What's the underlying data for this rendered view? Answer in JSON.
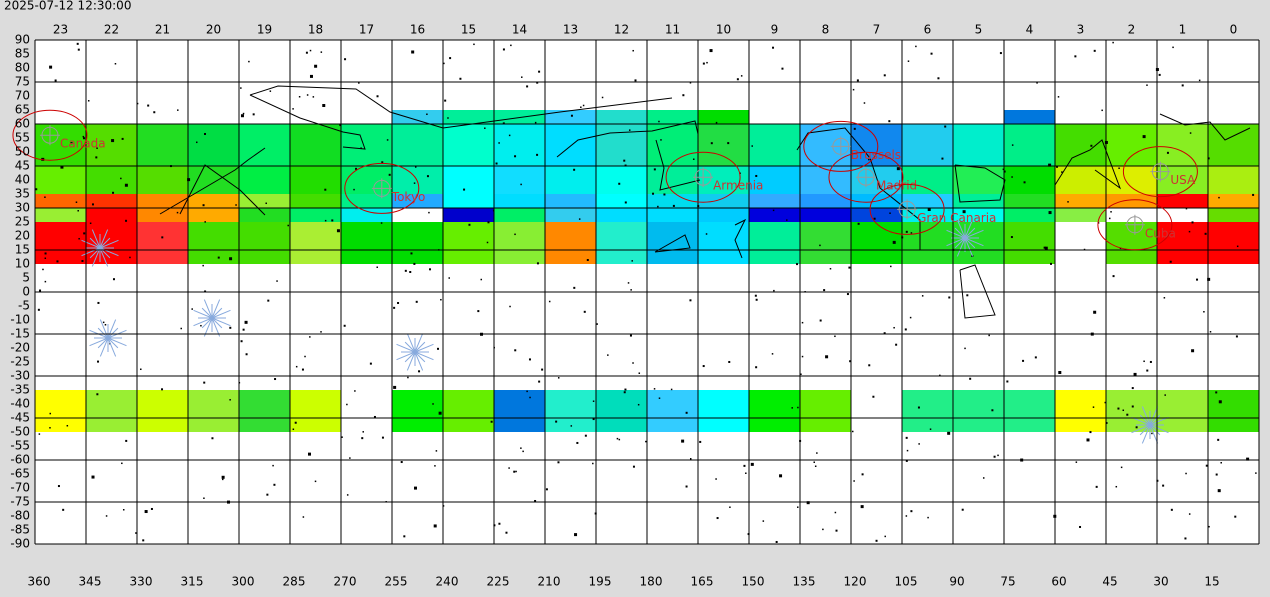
{
  "timestamp": "2025-07-12 12:30:00",
  "map": {
    "type": "heatmap",
    "ra_hours": [
      23,
      22,
      21,
      20,
      19,
      18,
      17,
      16,
      15,
      14,
      13,
      12,
      11,
      10,
      9,
      8,
      7,
      6,
      5,
      4,
      3,
      2,
      1,
      0
    ],
    "ra_degrees": [
      360,
      345,
      330,
      315,
      300,
      285,
      270,
      255,
      240,
      225,
      210,
      195,
      180,
      165,
      150,
      135,
      120,
      105,
      90,
      75,
      60,
      45,
      30,
      15
    ],
    "dec": [
      90,
      85,
      80,
      75,
      70,
      65,
      60,
      55,
      50,
      45,
      40,
      35,
      30,
      25,
      20,
      15,
      10,
      5,
      0,
      -5,
      -10,
      -15,
      -20,
      -25,
      -30,
      -35,
      -40,
      -45,
      -50,
      -55,
      -60,
      -65,
      -70,
      -75,
      -80,
      -85,
      -90
    ],
    "ralim": [
      360,
      0
    ],
    "declim": [
      90,
      -90
    ],
    "bands": [
      {
        "dec": [
          65,
          60
        ],
        "colors": [
          null,
          null,
          null,
          null,
          null,
          null,
          null,
          "#33ccee",
          "#00ee99",
          "#00ee99",
          "#33ccff",
          "#22ddcc",
          "#00ee88",
          "#00dd00",
          null,
          null,
          null,
          null,
          null,
          "#0077dd",
          null,
          null,
          null,
          null
        ]
      },
      {
        "dec": [
          60,
          45
        ],
        "colors": [
          "#33dd00",
          "#55dd00",
          "#22dd22",
          "#00dd44",
          "#00ee66",
          "#11dd22",
          "#00ee77",
          "#00ee99",
          "#00ffcc",
          "#00eeee",
          "#00ddff",
          "#22ddcc",
          "#00ee77",
          "#22dd44",
          "#00ee99",
          "#33bbff",
          "#1188ee",
          "#22ccee",
          "#00eecc",
          "#00ee88",
          "#44dd00",
          "#66ee00",
          "#88ee22",
          "#55dd00"
        ]
      },
      {
        "dec": [
          45,
          35
        ],
        "colors": [
          "#66ee00",
          "#44dd00",
          "#55dd00",
          "#22dd22",
          "#00ee44",
          "#22dd00",
          "#00ee66",
          "#00eeaa",
          "#00ffff",
          "#11ddff",
          "#00eeee",
          "#00ffee",
          "#00ee99",
          "#00eebb",
          "#00ccff",
          "#33bbff",
          "#22ccee",
          "#00ee88",
          "#22ee55",
          "#00dd00",
          "#ccee00",
          "#ddee00",
          "#88ee22",
          "#aaee11"
        ]
      },
      {
        "dec": [
          35,
          30
        ],
        "colors": [
          "#ff6600",
          "#ff3300",
          "#ff8800",
          "#ffaa00",
          "#99ee33",
          "#44dd00",
          "#00ee88",
          "#22aaff",
          "#00ffff",
          "#00ddff",
          "#22bbff",
          "#00ffff",
          "#00ddee",
          "#11ccee",
          "#33aaff",
          "#2299ff",
          "#00bbff",
          "#22ccff",
          "#00ee99",
          "#22dd22",
          "#ffaa00",
          "#ff9900",
          "#ff0000",
          "#ffaa00"
        ]
      },
      {
        "dec": [
          30,
          25
        ],
        "colors": [
          "#99ee33",
          "#ff0000",
          "#ff8800",
          "#ffaa00",
          "#22dd22",
          "#00ee66",
          "#00eeee",
          null,
          "#0000cc",
          "#00ee66",
          "#33ccee",
          "#00ddff",
          "#00ddff",
          "#00ccff",
          "#0000dd",
          "#0000dd",
          "#0044dd",
          "#00eeee",
          "#00ffee",
          "#00ee66",
          "#88ee44",
          null,
          null,
          "#66dd00"
        ]
      },
      {
        "dec": [
          25,
          10
        ],
        "colors": [
          "#ff0000",
          "#ff0000",
          "#ff3333",
          "#44dd00",
          "#44dd00",
          "#aaee33",
          "#00dd00",
          "#00dd00",
          "#66ee00",
          "#88ee33",
          "#ff8800",
          "#22eecc",
          "#00bbee",
          "#00ddff",
          "#00ee99",
          "#33dd33",
          "#00dd00",
          "#22dd22",
          "#22dd22",
          "#44dd00",
          null,
          "#55dd00",
          "#ff0000",
          "#ff0000"
        ]
      },
      {
        "dec": [
          -35,
          -50
        ],
        "colors": [
          "#ffff00",
          "#99ee33",
          "#ccff00",
          "#99ee33",
          "#33dd33",
          "#ccff00",
          null,
          "#00ee00",
          "#66ee00",
          "#0077dd",
          "#22eecc",
          "#00ddbb",
          "#33ccff",
          "#00ffff",
          "#00ee00",
          "#66ee00",
          null,
          "#22ee88",
          "#22ee88",
          "#22ee88",
          "#ffff00",
          "#99ee33",
          "#99ee33",
          "#33dd00"
        ]
      }
    ],
    "places": [
      {
        "name": "Canada",
        "ra": 355.6,
        "dec": 56
      },
      {
        "name": "Tokyo",
        "ra": 258,
        "dec": 37
      },
      {
        "name": "Armenia",
        "ra": 163.5,
        "dec": 41
      },
      {
        "name": "Brussels",
        "ra": 123,
        "dec": 52
      },
      {
        "name": "Madrid",
        "ra": 115.6,
        "dec": 41
      },
      {
        "name": "Gran Canaria",
        "ra": 103.5,
        "dec": 29.5
      },
      {
        "name": "Cuba",
        "ra": 36.5,
        "dec": 24
      },
      {
        "name": "USA",
        "ra": 29,
        "dec": 43
      }
    ]
  }
}
